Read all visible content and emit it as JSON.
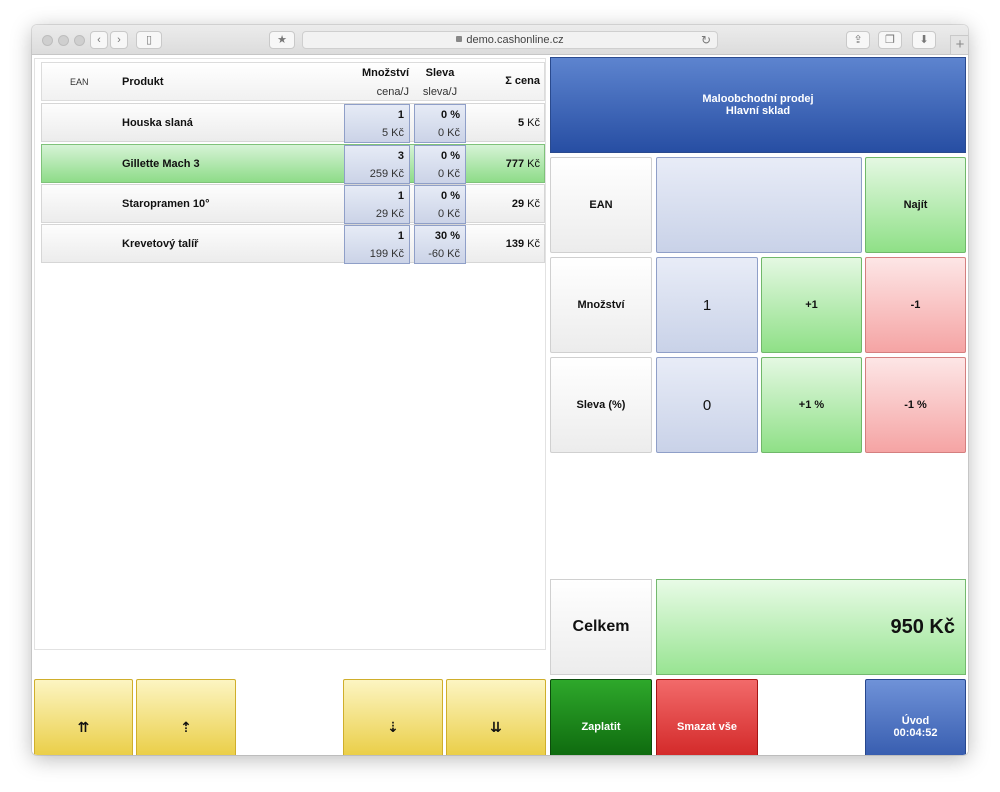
{
  "browser": {
    "url": "demo.cashonline.cz"
  },
  "table": {
    "headers": {
      "ean": "EAN",
      "product": "Produkt",
      "quantity": "Množství",
      "unit_price": "cena/J",
      "discount": "Sleva",
      "discount_unit": "sleva/J",
      "total": "Σ cena"
    },
    "items": [
      {
        "name": "Houska slaná",
        "qty": "1",
        "unit_price": "5 Kč",
        "discount": "0 %",
        "discount_unit": "0 Kč",
        "total": "5",
        "currency": "Kč",
        "selected": false
      },
      {
        "name": "Gillette Mach 3",
        "qty": "3",
        "unit_price": "259 Kč",
        "discount": "0 %",
        "discount_unit": "0 Kč",
        "total": "777",
        "currency": "Kč",
        "selected": true
      },
      {
        "name": "Staropramen 10°",
        "qty": "1",
        "unit_price": "29 Kč",
        "discount": "0 %",
        "discount_unit": "0 Kč",
        "total": "29",
        "currency": "Kč",
        "selected": false
      },
      {
        "name": "Krevetový talíř",
        "qty": "1",
        "unit_price": "199 Kč",
        "discount": "30 %",
        "discount_unit": "-60 Kč",
        "total": "139",
        "currency": "Kč",
        "selected": false
      }
    ]
  },
  "panel": {
    "title_line1": "Maloobchodní prodej",
    "title_line2": "Hlavní sklad",
    "ean_label": "EAN",
    "ean_value": "",
    "find_label": "Najít",
    "qty_label": "Množství",
    "qty_value": "1",
    "qty_plus": "+1",
    "qty_minus": "-1",
    "discount_label": "Sleva (%)",
    "discount_value": "0",
    "discount_plus": "+1 %",
    "discount_minus": "-1 %",
    "total_label": "Celkem",
    "total_value": "950 Kč"
  },
  "footer": {
    "first": "⇈",
    "up": "⇡",
    "down": "⇣",
    "last": "⇊",
    "pay": "Zaplatit",
    "clear_all": "Smazat vše",
    "home": "Úvod",
    "timer": "00:04:52"
  },
  "colors": {
    "accent_blue": "#2b51a6",
    "selected_row": "#8edc88",
    "pay_green": "#075c08",
    "delete_red": "#cc1a1a",
    "nav_yellow": "#e6c52a"
  }
}
